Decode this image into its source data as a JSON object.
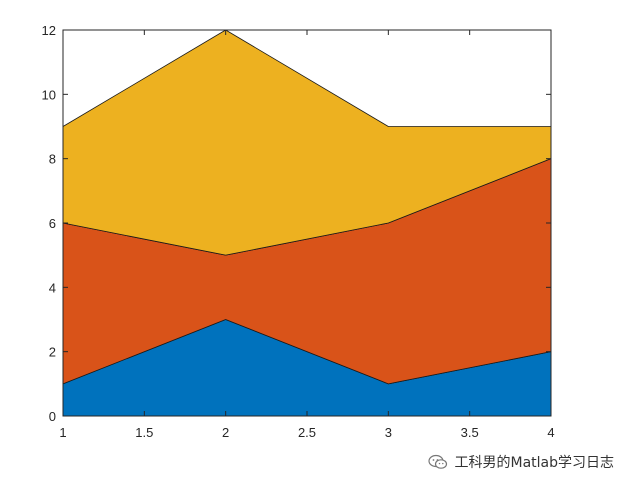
{
  "chart_data": {
    "type": "area",
    "stacked": true,
    "x": [
      1,
      2,
      3,
      4
    ],
    "series": [
      {
        "values": [
          1,
          3,
          1,
          2
        ],
        "color": "#0072BD"
      },
      {
        "values": [
          5,
          2,
          5,
          6
        ],
        "color": "#D95319"
      },
      {
        "values": [
          3,
          7,
          3,
          1
        ],
        "color": "#EDB120"
      }
    ],
    "xlim": [
      1,
      4
    ],
    "ylim": [
      0,
      12
    ],
    "xticks": [
      1,
      1.5,
      2,
      2.5,
      3,
      3.5,
      4
    ],
    "yticks": [
      0,
      2,
      4,
      6,
      8,
      10,
      12
    ],
    "xtick_labels": [
      "1",
      "1.5",
      "2",
      "2.5",
      "3",
      "3.5",
      "4"
    ],
    "ytick_labels": [
      "0",
      "2",
      "4",
      "6",
      "8",
      "10",
      "12"
    ],
    "box": true,
    "grid": false,
    "title": "",
    "xlabel": "",
    "ylabel": ""
  },
  "watermark": {
    "text": "工科男的Matlab学习日志",
    "icon": "wechat-icon"
  }
}
